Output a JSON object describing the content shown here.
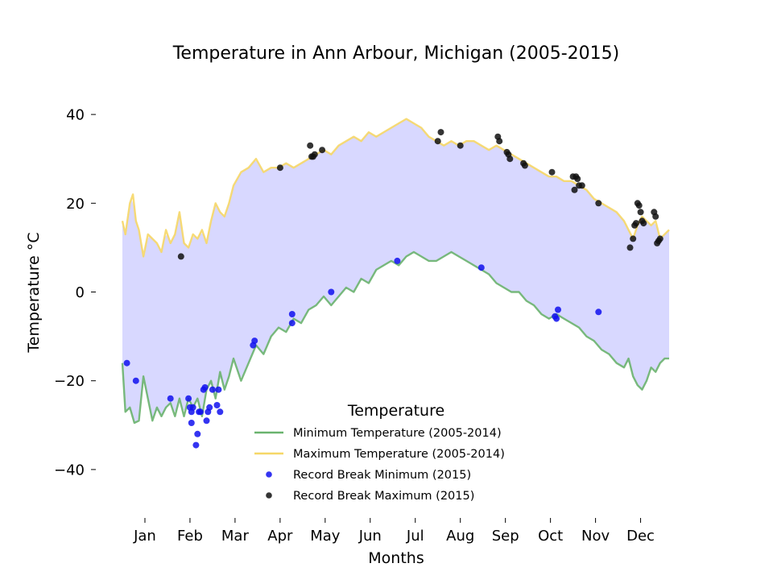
{
  "chart_data": {
    "type": "line",
    "title": "Temperature in Ann Arbour, Michigan (2005-2015)",
    "xlabel": "Months",
    "ylabel": "Temperature °C",
    "xlim": [
      1,
      365
    ],
    "ylim": [
      -50,
      50
    ],
    "yticks": [
      -40,
      -20,
      0,
      20,
      40
    ],
    "ytick_labels": [
      "−40",
      "−20",
      "0",
      "20",
      "40"
    ],
    "xticks": [
      {
        "day": 16,
        "label": "Jan"
      },
      {
        "day": 46,
        "label": "Feb"
      },
      {
        "day": 76,
        "label": "Mar"
      },
      {
        "day": 106,
        "label": "Apr"
      },
      {
        "day": 136,
        "label": "May"
      },
      {
        "day": 166,
        "label": "Jun"
      },
      {
        "day": 196,
        "label": "Jul"
      },
      {
        "day": 226,
        "label": "Aug"
      },
      {
        "day": 256,
        "label": "Sep"
      },
      {
        "day": 286,
        "label": "Oct"
      },
      {
        "day": 316,
        "label": "Nov"
      },
      {
        "day": 346,
        "label": "Dec"
      }
    ],
    "grid": false,
    "fill_between": {
      "color": "#d8d8ff"
    },
    "legend": {
      "title": "Temperature",
      "placement": "lower center"
    },
    "series": [
      {
        "name": "Minimum Temperature (2005-2014)",
        "kind": "line",
        "color": "#6ab36e",
        "x": [
          1,
          3,
          6,
          9,
          12,
          15,
          18,
          21,
          24,
          27,
          30,
          33,
          36,
          39,
          42,
          45,
          48,
          51,
          54,
          57,
          60,
          63,
          66,
          69,
          72,
          75,
          80,
          85,
          90,
          95,
          100,
          105,
          110,
          115,
          120,
          125,
          130,
          135,
          140,
          145,
          150,
          155,
          160,
          165,
          170,
          175,
          180,
          185,
          190,
          195,
          200,
          205,
          210,
          215,
          220,
          225,
          230,
          235,
          240,
          245,
          250,
          255,
          260,
          265,
          270,
          275,
          280,
          285,
          290,
          295,
          300,
          305,
          310,
          315,
          320,
          325,
          330,
          335,
          338,
          341,
          344,
          347,
          350,
          353,
          356,
          359,
          362,
          365
        ],
        "y": [
          -16,
          -27,
          -26,
          -29.5,
          -29,
          -19,
          -24,
          -29,
          -26,
          -28,
          -26,
          -25,
          -28,
          -24,
          -28,
          -24,
          -26,
          -24,
          -28,
          -22,
          -20,
          -24,
          -18,
          -22,
          -19,
          -15,
          -20,
          -16,
          -12,
          -14,
          -10,
          -8,
          -9,
          -6,
          -7,
          -4,
          -3,
          -1,
          -3,
          -1,
          1,
          0,
          3,
          2,
          5,
          6,
          7,
          6,
          8,
          9,
          8,
          7,
          7,
          8,
          9,
          8,
          7,
          6,
          5,
          4,
          2,
          1,
          0,
          0,
          -2,
          -3,
          -5,
          -6,
          -5,
          -6,
          -7,
          -8,
          -10,
          -11,
          -13,
          -14,
          -16,
          -17,
          -15,
          -19,
          -21,
          -22,
          -20,
          -17,
          -18,
          -16,
          -15,
          -15
        ]
      },
      {
        "name": "Maximum Temperature (2005-2014)",
        "kind": "line",
        "color": "#f6d767",
        "x": [
          1,
          3,
          6,
          8,
          10,
          12,
          15,
          18,
          21,
          24,
          27,
          30,
          33,
          36,
          39,
          42,
          45,
          48,
          51,
          54,
          57,
          60,
          63,
          66,
          69,
          72,
          75,
          80,
          85,
          90,
          95,
          100,
          105,
          110,
          115,
          120,
          125,
          130,
          135,
          140,
          145,
          150,
          155,
          160,
          165,
          170,
          175,
          180,
          185,
          190,
          195,
          200,
          205,
          210,
          215,
          220,
          225,
          230,
          235,
          240,
          245,
          250,
          255,
          260,
          265,
          270,
          275,
          280,
          285,
          290,
          295,
          300,
          305,
          310,
          315,
          320,
          325,
          330,
          335,
          338,
          341,
          344,
          347,
          350,
          353,
          356,
          359,
          362,
          365
        ],
        "y": [
          16,
          13,
          20,
          22,
          16,
          14,
          8,
          13,
          12,
          11,
          9,
          14,
          11,
          13,
          18,
          11,
          10,
          13,
          12,
          14,
          11,
          16,
          20,
          18,
          17,
          20,
          24,
          27,
          28,
          30,
          27,
          28,
          28,
          29,
          28,
          29,
          30,
          31,
          32,
          31,
          33,
          34,
          35,
          34,
          36,
          35,
          36,
          37,
          38,
          39,
          38,
          37,
          35,
          34,
          33,
          34,
          33,
          34,
          34,
          33,
          32,
          33,
          32,
          31,
          30,
          29,
          28,
          27,
          26,
          26,
          25,
          25,
          24,
          23,
          21,
          20,
          19,
          18,
          16,
          14,
          12,
          15,
          17,
          16,
          15,
          16,
          12,
          13,
          14
        ]
      },
      {
        "name": "Record Break Minimum (2015)",
        "kind": "scatter",
        "color": "#1010ee",
        "x": [
          4,
          10,
          33,
          45,
          46,
          47,
          47,
          48,
          50,
          51,
          52,
          53,
          55,
          56,
          57,
          58,
          59,
          61,
          64,
          65,
          66,
          88,
          89,
          114,
          114,
          140,
          184,
          240,
          289,
          290,
          291,
          318
        ],
        "y": [
          -16,
          -20,
          -24,
          -24,
          -26,
          -29.5,
          -27,
          -26,
          -34.5,
          -32,
          -27,
          -27,
          -22,
          -21.5,
          -29,
          -27,
          -26,
          -22,
          -25.5,
          -22,
          -27,
          -12,
          -11,
          -7,
          -5,
          0,
          7,
          5.5,
          -5.5,
          -6,
          -4,
          -4.5
        ]
      },
      {
        "name": "Record Break Maximum (2015)",
        "kind": "scatter",
        "color": "#111111",
        "x": [
          40,
          106,
          126,
          127,
          128,
          129,
          134,
          211,
          213,
          226,
          251,
          252,
          257,
          258,
          259,
          268,
          269,
          287,
          301,
          302,
          303,
          304,
          305,
          307,
          318,
          339,
          341,
          342,
          343,
          344,
          345,
          346,
          347,
          348,
          355,
          356,
          357,
          358,
          359
        ],
        "y": [
          8,
          28,
          33,
          30.5,
          30.5,
          31,
          32,
          34,
          36,
          33,
          35,
          34,
          31.5,
          31,
          30,
          29,
          28.5,
          27,
          26,
          23,
          26,
          25.5,
          24,
          24,
          20,
          10,
          12,
          15,
          15.5,
          20,
          19.5,
          18,
          16,
          15.5,
          18,
          17,
          11,
          11.5,
          12
        ]
      }
    ]
  }
}
